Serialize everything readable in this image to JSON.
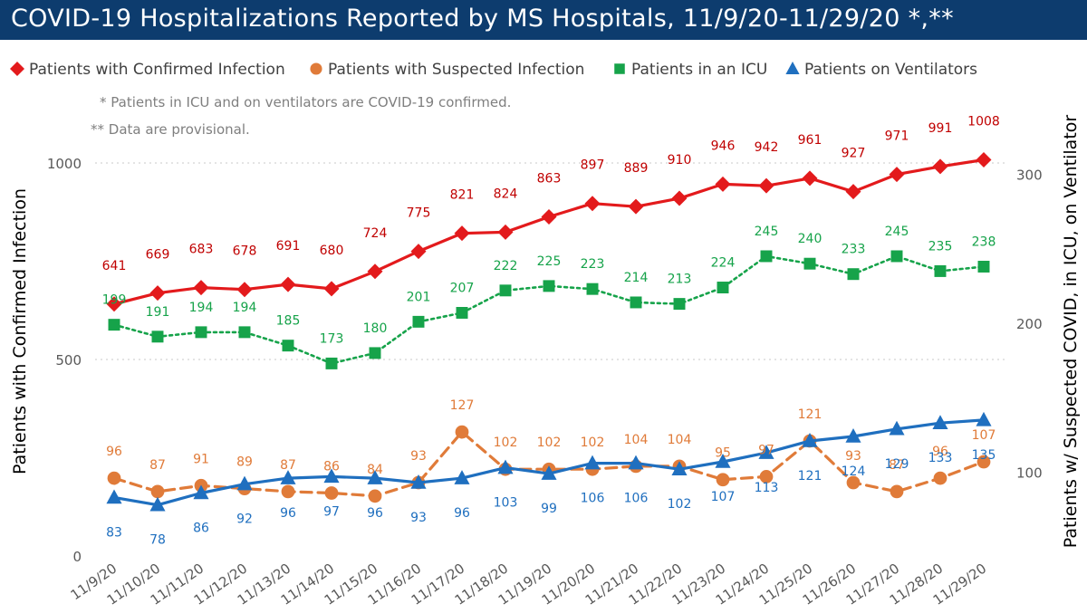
{
  "title": "COVID-19 Hospitalizations Reported by MS Hospitals, 11/9/20-11/29/20 *,**",
  "notes": [
    "* Patients in ICU and on ventilators are COVID-19 confirmed.",
    "** Data are provisional."
  ],
  "chart_data": {
    "type": "line",
    "x": [
      "11/9/20",
      "11/10/20",
      "11/11/20",
      "11/12/20",
      "11/13/20",
      "11/14/20",
      "11/15/20",
      "11/16/20",
      "11/17/20",
      "11/18/20",
      "11/19/20",
      "11/20/20",
      "11/21/20",
      "11/22/20",
      "11/23/20",
      "11/24/20",
      "11/25/20",
      "11/26/20",
      "11/27/20",
      "11/28/20",
      "11/29/20"
    ],
    "ylabel_left": "Patients with Confirmed Infection",
    "ylabel_right": "Patients w/ Suspected COVID, in ICU, on Ventilator",
    "ylim_left": [
      0,
      1000
    ],
    "yticks_left": [
      0,
      500,
      1000
    ],
    "ylim_right": [
      50,
      300
    ],
    "yticks_right": [
      100,
      200,
      300
    ],
    "grid": "horizontal dotted",
    "legend_position": "top",
    "series": [
      {
        "name": "Patients with Confirmed Infection",
        "axis": "left",
        "color": "#e31a1c",
        "marker": "diamond",
        "line": "solid",
        "values": [
          641,
          669,
          683,
          678,
          691,
          680,
          724,
          775,
          821,
          824,
          863,
          897,
          889,
          910,
          946,
          942,
          961,
          927,
          971,
          991,
          1008
        ]
      },
      {
        "name": "Patients with Suspected Infection",
        "axis": "right",
        "color": "#e07b39",
        "marker": "circle",
        "line": "dashed",
        "values": [
          96,
          87,
          91,
          89,
          87,
          86,
          84,
          93,
          127,
          102,
          102,
          102,
          104,
          104,
          95,
          97,
          121,
          93,
          87,
          96,
          107
        ]
      },
      {
        "name": "Patients in an ICU",
        "axis": "right",
        "color": "#16a34a",
        "marker": "square",
        "line": "dotted",
        "values": [
          199,
          191,
          194,
          194,
          185,
          173,
          180,
          201,
          207,
          222,
          225,
          223,
          214,
          213,
          224,
          245,
          240,
          233,
          245,
          235,
          238
        ]
      },
      {
        "name": "Patients on Ventilators",
        "axis": "right",
        "color": "#1f6fbf",
        "marker": "triangle",
        "line": "solid",
        "values": [
          83,
          78,
          86,
          92,
          96,
          97,
          96,
          93,
          96,
          103,
          99,
          106,
          106,
          102,
          107,
          113,
          121,
          124,
          129,
          133,
          135
        ]
      }
    ]
  }
}
